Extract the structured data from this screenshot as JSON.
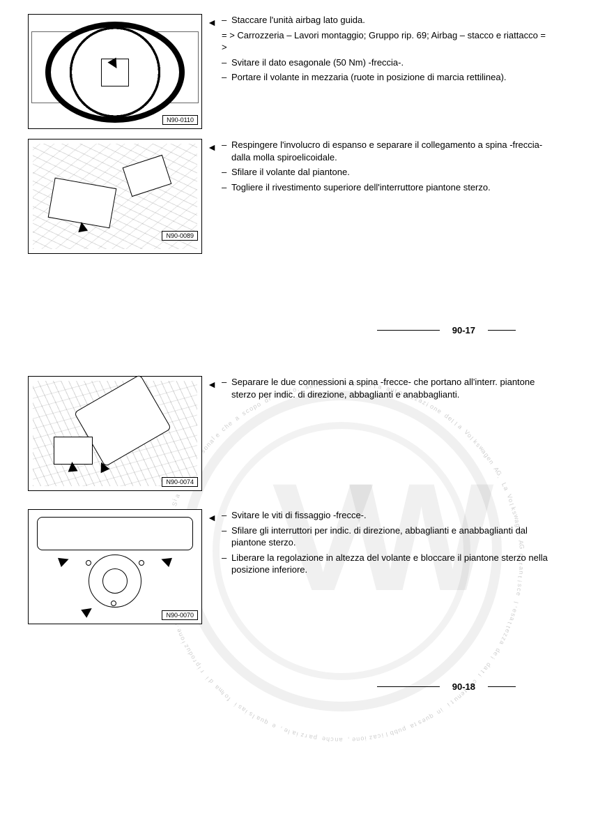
{
  "figures": {
    "f1": {
      "label": "N90-0110"
    },
    "f2": {
      "label": "N90-0089"
    },
    "f3": {
      "label": "N90-0074"
    },
    "f4": {
      "label": "N90-0070"
    }
  },
  "block1": {
    "li1": "Staccare l'unità airbag lato guida.",
    "ref": "= > Carrozzeria – Lavori montaggio; Gruppo rip. 69; Airbag – stacco e riattacco = >",
    "li2": "Svitare il dato esagonale (50 Nm) -freccia-.",
    "li3": "Portare il volante in mezzaria (ruote in posizione di marcia rettilinea)."
  },
  "block2": {
    "li1": "Respingere l'involucro di espanso e separare il collegamento a spina -freccia- dalla molla spiroelicoidale.",
    "li2": "Sfilare il volante dal piantone.",
    "li3": "Togliere il rivestimento superiore dell'interruttore piantone sterzo."
  },
  "block3": {
    "li1": "Separare le due connessioni a spina -frecce- che portano all'interr. piantone sterzo per indic. di direzione, abbaglianti e anabbaglianti."
  },
  "block4": {
    "li1": "Svitare le viti di fissaggio -frecce-.",
    "li2": "Sfilare gli interruttori per indic. di direzione, abbaglianti e anabbaglianti dal piantone sterzo.",
    "li3": "Liberare la regolazione in altezza del volante e bloccare il piantone sterzo nella posizione inferiore."
  },
  "pagenum1": "90-17",
  "pagenum2": "90-18",
  "watermark_text": "Copyright by Volkswagen AG. Sia ad uso personale che a scopo di lucro, senza l' esplicita autorizzazione della Volkswagen AG. La Volkswagen AG garantisce l'esattezza dei dati contenuti in questa pubblicazione, anche parziale, e qualsiasi forma di riproduzione."
}
